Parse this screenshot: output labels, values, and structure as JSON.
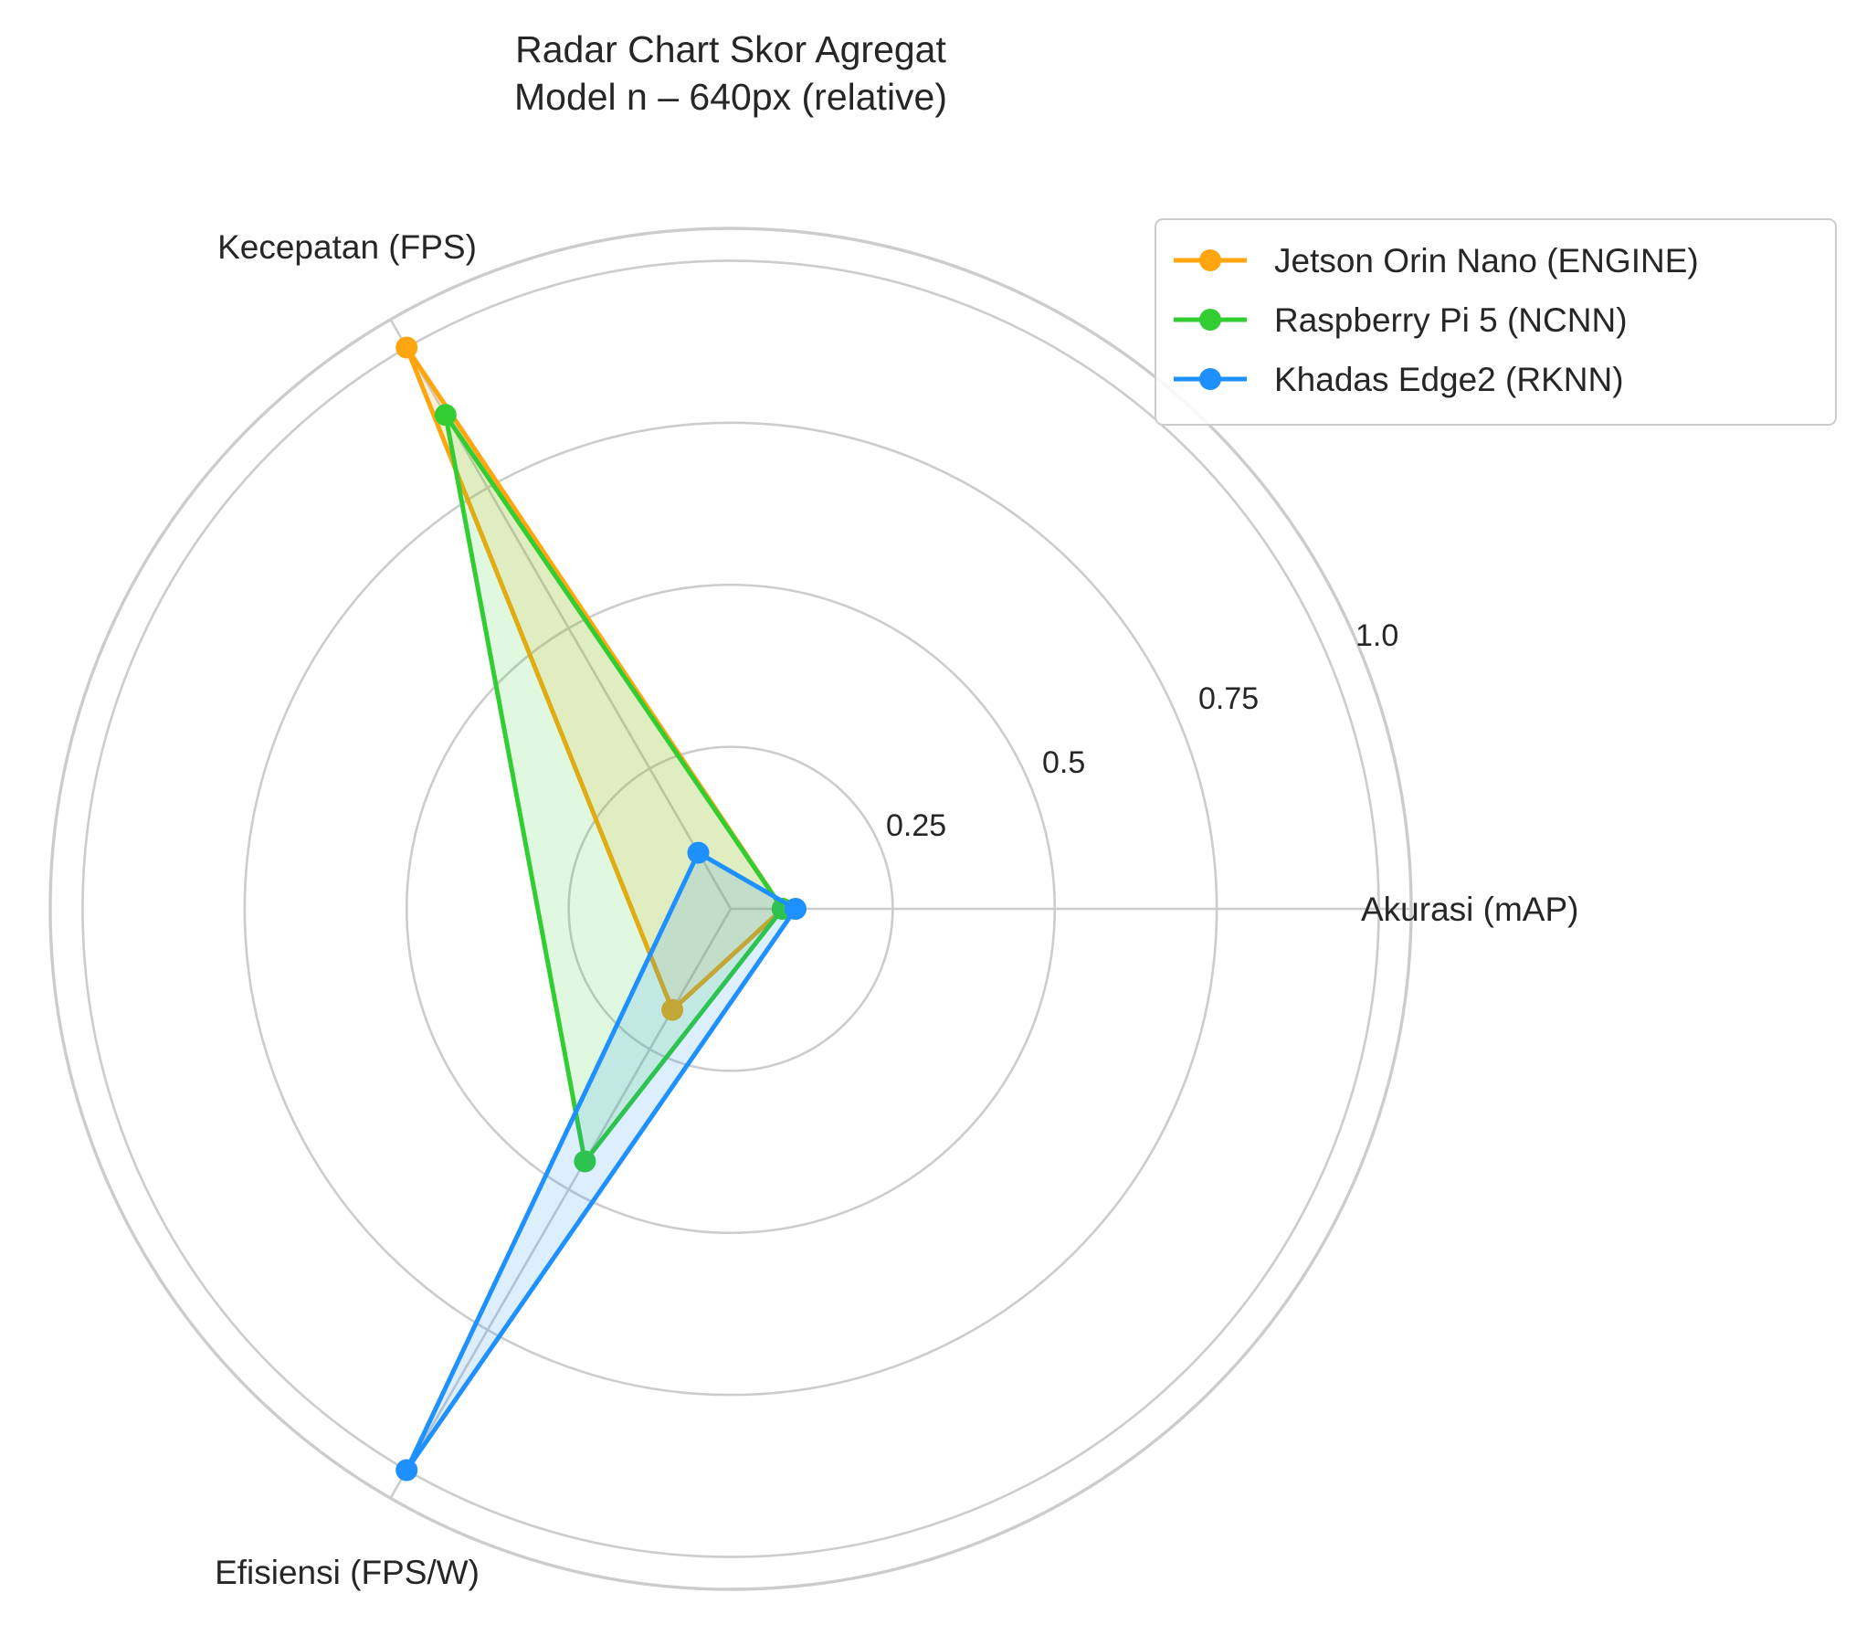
{
  "chart_data": {
    "type": "radar",
    "title": "Radar Chart Skor Agregat\nModel n – 640px (relative)",
    "title_lines": [
      "Radar Chart Skor Agregat",
      "Model n – 640px (relative)"
    ],
    "axes": [
      "Akurasi (mAP)",
      "Kecepatan (FPS)",
      "Efisiensi (FPS/W)"
    ],
    "radial_ticks": [
      "0.25",
      "0.5",
      "0.75",
      "1.0"
    ],
    "radial_tick_values": [
      0.25,
      0.5,
      0.75,
      1.0
    ],
    "rlim": [
      0,
      1.05
    ],
    "grid": true,
    "legend_position": "top-right",
    "series": [
      {
        "name": "Jetson Orin Nano (ENGINE)",
        "color": "#ffa50f",
        "values": [
          0.08,
          1.0,
          0.18
        ]
      },
      {
        "name": "Raspberry Pi 5 (NCNN)",
        "color": "#32cd32",
        "values": [
          0.08,
          0.88,
          0.45
        ]
      },
      {
        "name": "Khadas Edge2 (RKNN)",
        "color": "#1e90ff",
        "values": [
          0.1,
          0.1,
          1.0
        ]
      }
    ]
  }
}
